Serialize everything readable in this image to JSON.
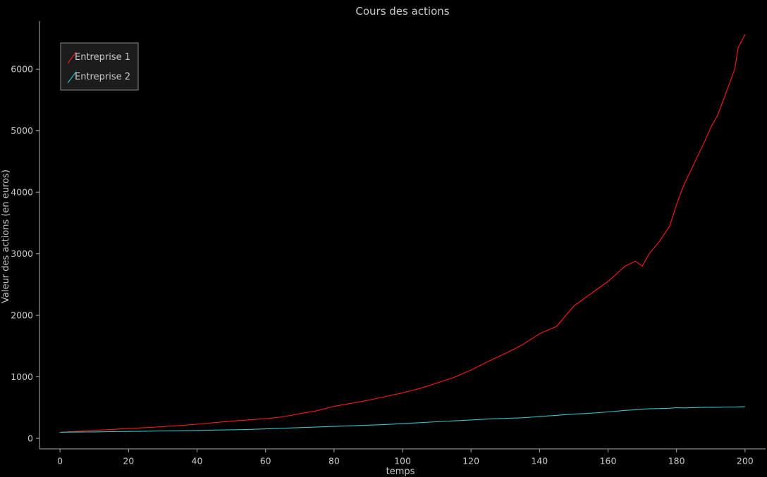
{
  "chart_data": {
    "type": "line",
    "title": "Cours des actions",
    "xlabel": "temps",
    "ylabel": "Valeur des actions (en euros)",
    "xlim": [
      -6,
      206
    ],
    "ylim": [
      -170,
      6780
    ],
    "x_ticks": [
      0,
      20,
      40,
      60,
      80,
      100,
      120,
      140,
      160,
      180,
      200
    ],
    "x_tick_labels": [
      "0",
      "20",
      "40",
      "60",
      "80",
      "100",
      "120",
      "140",
      "160",
      "180",
      "200"
    ],
    "y_ticks": [
      0,
      1000,
      2000,
      3000,
      4000,
      5000,
      6000
    ],
    "y_tick_labels": [
      "0",
      "1000",
      "2000",
      "3000",
      "4000",
      "5000",
      "6000"
    ],
    "grid": false,
    "legend_position": "top-left",
    "background_color": "#000000",
    "axis_color": "#aaaaaa",
    "text_color": "#c8c8c8",
    "legend_background": "#1c1c1c",
    "legend_border": "#888888",
    "x": [
      0,
      5,
      10,
      15,
      20,
      25,
      30,
      35,
      40,
      45,
      50,
      55,
      60,
      65,
      70,
      75,
      80,
      85,
      90,
      95,
      100,
      105,
      110,
      115,
      120,
      125,
      130,
      135,
      140,
      145,
      150,
      155,
      160,
      163,
      165,
      168,
      170,
      172,
      175,
      178,
      180,
      182,
      185,
      188,
      190,
      192,
      195,
      197,
      198,
      200
    ],
    "series": [
      {
        "name": "Entreprise 1",
        "color": "#ff1a1a",
        "values": [
          100,
          115,
          130,
          145,
          160,
          175,
          190,
          210,
          230,
          255,
          280,
          300,
          320,
          350,
          400,
          450,
          520,
          570,
          620,
          680,
          740,
          810,
          900,
          990,
          1110,
          1250,
          1380,
          1520,
          1700,
          1820,
          2150,
          2350,
          2550,
          2700,
          2800,
          2880,
          2800,
          3000,
          3200,
          3450,
          3800,
          4100,
          4450,
          4800,
          5050,
          5250,
          5700,
          6000,
          6350,
          6560
        ]
      },
      {
        "name": "Entreprise 2",
        "color": "#2ec4c4",
        "values": [
          100,
          103,
          106,
          110,
          113,
          117,
          121,
          125,
          130,
          135,
          140,
          145,
          155,
          165,
          175,
          185,
          195,
          205,
          215,
          225,
          240,
          255,
          270,
          285,
          300,
          315,
          325,
          335,
          355,
          375,
          395,
          410,
          430,
          445,
          455,
          465,
          475,
          480,
          485,
          490,
          500,
          495,
          500,
          505,
          505,
          505,
          510,
          510,
          512,
          515
        ]
      }
    ]
  }
}
